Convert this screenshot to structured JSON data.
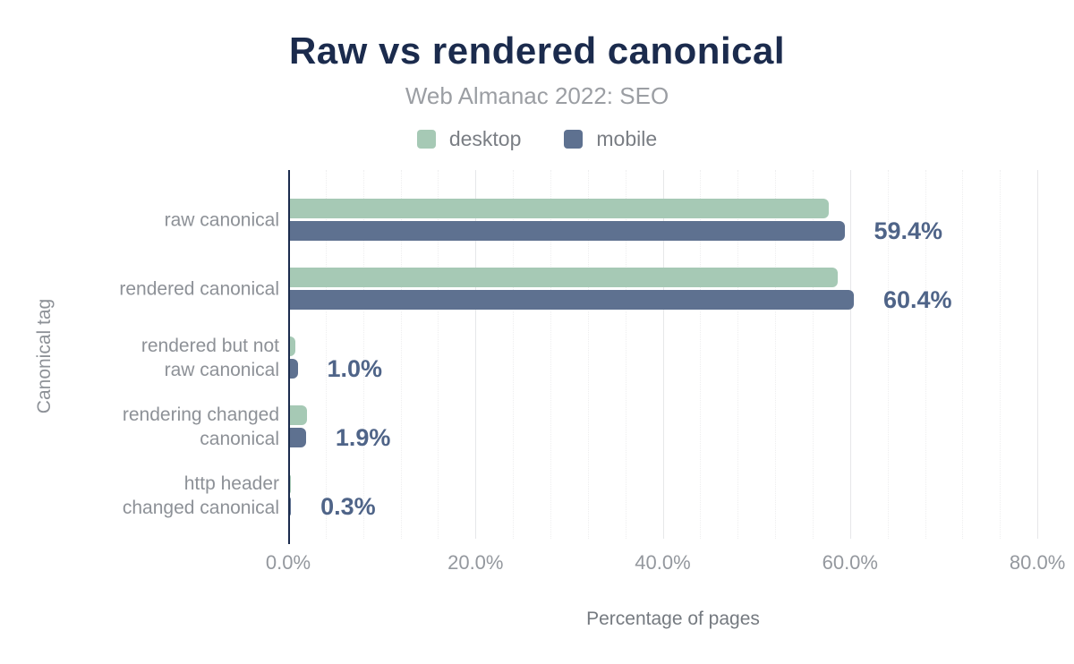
{
  "header": {
    "title": "Raw vs rendered canonical",
    "subtitle": "Web Almanac 2022: SEO"
  },
  "legend": [
    {
      "label": "desktop",
      "color": "#a6c9b5"
    },
    {
      "label": "mobile",
      "color": "#5e7190"
    }
  ],
  "chart_data": {
    "type": "bar",
    "orientation": "horizontal",
    "title": "Raw vs rendered canonical",
    "subtitle": "Web Almanac 2022: SEO",
    "xlabel": "Percentage of pages",
    "ylabel": "Canonical tag",
    "categories": [
      "raw canonical",
      "rendered canonical",
      "rendered but not\nraw canonical",
      "rendering changed\ncanonical",
      "http header\nchanged canonical"
    ],
    "series": [
      {
        "name": "desktop",
        "color": "#a6c9b5",
        "values": [
          57.7,
          58.7,
          0.8,
          2.0,
          0.3
        ]
      },
      {
        "name": "mobile",
        "color": "#5e7190",
        "values": [
          59.4,
          60.4,
          1.0,
          1.9,
          0.3
        ]
      }
    ],
    "data_labels": [
      "59.4%",
      "60.4%",
      "1.0%",
      "1.9%",
      "0.3%"
    ],
    "data_label_series": "mobile",
    "x_ticks": [
      {
        "value": 0,
        "label": "0.0%"
      },
      {
        "value": 20,
        "label": "20.0%"
      },
      {
        "value": 40,
        "label": "40.0%"
      },
      {
        "value": 60,
        "label": "60.0%"
      },
      {
        "value": 80,
        "label": "80.0%"
      }
    ],
    "xlim": [
      0,
      82
    ],
    "minor_grid_step": 4,
    "grid": true,
    "legend_position": "top"
  }
}
